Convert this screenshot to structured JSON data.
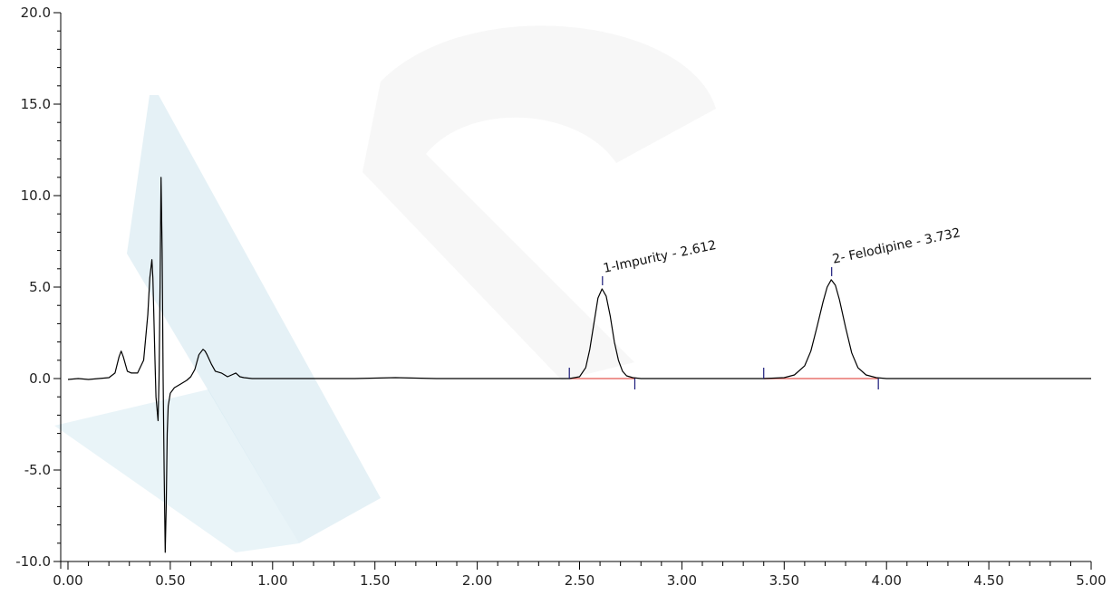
{
  "chart_data": {
    "type": "line",
    "title": "",
    "xlabel": "",
    "ylabel": "",
    "xlim": [
      0.0,
      5.0
    ],
    "ylim": [
      -10.0,
      20.0
    ],
    "grid": false,
    "legend": "none",
    "x_ticks": [
      "0.00",
      "0.50",
      "1.00",
      "1.50",
      "2.00",
      "2.50",
      "3.00",
      "3.50",
      "4.00",
      "4.50",
      "5.00"
    ],
    "x_tick_values": [
      0.0,
      0.5,
      1.0,
      1.5,
      2.0,
      2.5,
      3.0,
      3.5,
      4.0,
      4.5,
      5.0
    ],
    "y_ticks": [
      "-10.0",
      "-5.0",
      "0.0",
      "5.0",
      "10.0",
      "15.0",
      "20.0"
    ],
    "y_tick_values": [
      -10.0,
      -5.0,
      0.0,
      5.0,
      10.0,
      15.0,
      20.0
    ],
    "series": [
      {
        "color": "#000000",
        "x": [
          0.0,
          0.05,
          0.1,
          0.15,
          0.2,
          0.23,
          0.25,
          0.26,
          0.27,
          0.29,
          0.31,
          0.34,
          0.37,
          0.39,
          0.4,
          0.41,
          0.415,
          0.425,
          0.43,
          0.44,
          0.445,
          0.45,
          0.455,
          0.46,
          0.465,
          0.47,
          0.475,
          0.48,
          0.485,
          0.49,
          0.5,
          0.52,
          0.55,
          0.58,
          0.6,
          0.62,
          0.64,
          0.66,
          0.67,
          0.68,
          0.7,
          0.72,
          0.75,
          0.78,
          0.8,
          0.82,
          0.84,
          0.86,
          0.9,
          1.0,
          1.2,
          1.4,
          1.6,
          1.8,
          2.0,
          2.2,
          2.35,
          2.45,
          2.5,
          2.53,
          2.55,
          2.57,
          2.59,
          2.61,
          2.63,
          2.65,
          2.67,
          2.69,
          2.71,
          2.73,
          2.76,
          2.8,
          2.9,
          3.0,
          3.2,
          3.4,
          3.5,
          3.55,
          3.6,
          3.63,
          3.66,
          3.69,
          3.71,
          3.73,
          3.75,
          3.77,
          3.8,
          3.83,
          3.86,
          3.9,
          3.95,
          4.0,
          4.2,
          4.4,
          4.6,
          4.8,
          5.0
        ],
        "y": [
          -0.05,
          0.0,
          -0.05,
          0.0,
          0.05,
          0.3,
          1.2,
          1.5,
          1.2,
          0.4,
          0.3,
          0.3,
          1.0,
          3.5,
          5.5,
          6.5,
          5.5,
          1.0,
          -1.0,
          -2.3,
          0.0,
          5.0,
          11.0,
          7.0,
          0.0,
          -5.0,
          -9.5,
          -7.0,
          -3.0,
          -1.5,
          -0.8,
          -0.5,
          -0.3,
          -0.1,
          0.1,
          0.5,
          1.3,
          1.6,
          1.5,
          1.3,
          0.8,
          0.4,
          0.3,
          0.1,
          0.2,
          0.3,
          0.1,
          0.05,
          0.0,
          0.0,
          0.0,
          0.0,
          0.05,
          0.0,
          0.0,
          0.0,
          0.0,
          0.0,
          0.1,
          0.6,
          1.6,
          3.0,
          4.4,
          4.9,
          4.5,
          3.4,
          2.0,
          1.0,
          0.4,
          0.15,
          0.05,
          0.0,
          0.0,
          0.0,
          0.0,
          0.0,
          0.05,
          0.2,
          0.7,
          1.5,
          2.8,
          4.2,
          5.0,
          5.4,
          5.1,
          4.3,
          2.8,
          1.4,
          0.6,
          0.2,
          0.05,
          0.0,
          0.0,
          0.0,
          0.0,
          0.0,
          0.0
        ]
      }
    ],
    "peaks": [
      {
        "label": "1-Impurity - 2.612",
        "x": 2.612,
        "y": 4.9,
        "baseline_start": 2.45,
        "baseline_end": 2.77
      },
      {
        "label": "2- Felodipine - 3.732",
        "x": 3.732,
        "y": 5.4,
        "baseline_start": 3.4,
        "baseline_end": 3.96
      }
    ],
    "baseline_color": "#e8736e",
    "line_color": "#000000",
    "watermark_color": "#cfe6ef"
  }
}
